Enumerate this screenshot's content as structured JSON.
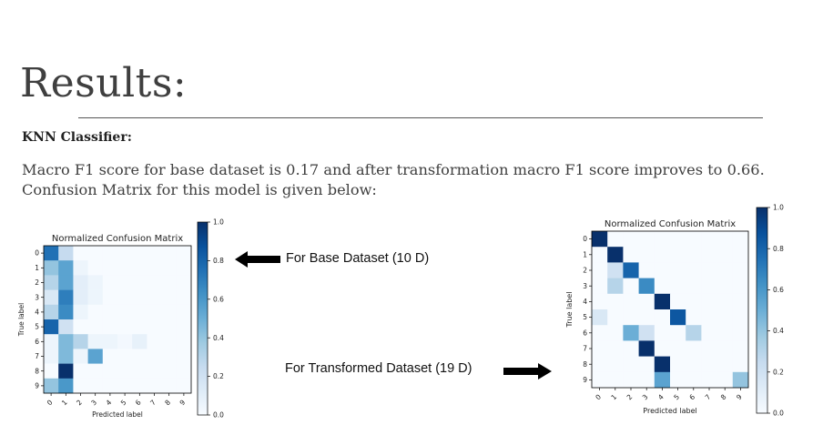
{
  "slide": {
    "title": "Results:",
    "subheading": "KNN Classifier:",
    "body_line1": "Macro F1 score for base dataset is 0.17 and after transformation macro F1 score improves to 0.66.",
    "body_line2": "Confusion Matrix for this model is given below:",
    "annotation_base": "For Base Dataset (10 D)",
    "annotation_transformed": "For Transformed Dataset (19 D)"
  },
  "colors": {
    "colormap_low": "#f7fbff",
    "colormap_high": "#08306b",
    "arrow": "#000000"
  },
  "chart_data": [
    {
      "type": "heatmap",
      "title": "Normalized Confusion Matrix",
      "xlabel": "Predicted label",
      "ylabel": "True label",
      "x": [
        "0",
        "1",
        "2",
        "3",
        "4",
        "5",
        "6",
        "7",
        "8",
        "9"
      ],
      "y": [
        "0",
        "1",
        "2",
        "3",
        "4",
        "5",
        "6",
        "7",
        "8",
        "9"
      ],
      "colorbar_ticks": [
        "0.0",
        "0.2",
        "0.4",
        "0.6",
        "0.8",
        "1.0"
      ],
      "zlim": [
        0,
        1
      ],
      "values": [
        [
          0.75,
          0.25,
          0.0,
          0.0,
          0.0,
          0.0,
          0.0,
          0.0,
          0.0,
          0.0
        ],
        [
          0.4,
          0.55,
          0.05,
          0.0,
          0.0,
          0.0,
          0.0,
          0.0,
          0.0,
          0.0
        ],
        [
          0.3,
          0.55,
          0.1,
          0.05,
          0.0,
          0.0,
          0.0,
          0.0,
          0.0,
          0.0
        ],
        [
          0.15,
          0.7,
          0.1,
          0.05,
          0.0,
          0.0,
          0.0,
          0.0,
          0.0,
          0.0
        ],
        [
          0.3,
          0.65,
          0.05,
          0.0,
          0.0,
          0.0,
          0.0,
          0.0,
          0.0,
          0.0
        ],
        [
          0.8,
          0.2,
          0.0,
          0.0,
          0.0,
          0.0,
          0.0,
          0.0,
          0.0,
          0.0
        ],
        [
          0.05,
          0.45,
          0.3,
          0.05,
          0.05,
          0.02,
          0.08,
          0.0,
          0.0,
          0.0
        ],
        [
          0.05,
          0.45,
          0.05,
          0.55,
          0.0,
          0.0,
          0.0,
          0.0,
          0.0,
          0.0
        ],
        [
          0.0,
          1.0,
          0.0,
          0.0,
          0.0,
          0.0,
          0.0,
          0.0,
          0.0,
          0.0
        ],
        [
          0.4,
          0.6,
          0.0,
          0.0,
          0.0,
          0.0,
          0.0,
          0.0,
          0.0,
          0.0
        ]
      ]
    },
    {
      "type": "heatmap",
      "title": "Normalized Confusion Matrix",
      "xlabel": "Predicted label",
      "ylabel": "True label",
      "x": [
        "0",
        "1",
        "2",
        "3",
        "4",
        "5",
        "6",
        "7",
        "8",
        "9"
      ],
      "y": [
        "0",
        "1",
        "2",
        "3",
        "4",
        "5",
        "6",
        "7",
        "8",
        "9"
      ],
      "colorbar_ticks": [
        "0.0",
        "0.2",
        "0.4",
        "0.6",
        "0.8",
        "1.0"
      ],
      "zlim": [
        0,
        1
      ],
      "values": [
        [
          1.0,
          0,
          0,
          0,
          0,
          0,
          0,
          0,
          0,
          0
        ],
        [
          0,
          1.0,
          0,
          0,
          0,
          0,
          0,
          0,
          0,
          0
        ],
        [
          0,
          0.2,
          0.8,
          0,
          0,
          0,
          0,
          0,
          0,
          0
        ],
        [
          0,
          0.3,
          0,
          0.65,
          0,
          0,
          0,
          0,
          0,
          0
        ],
        [
          0,
          0,
          0,
          0,
          1.0,
          0,
          0,
          0,
          0,
          0
        ],
        [
          0.15,
          0,
          0,
          0,
          0,
          0.85,
          0,
          0,
          0,
          0
        ],
        [
          0,
          0,
          0.5,
          0.2,
          0,
          0,
          0.3,
          0,
          0,
          0
        ],
        [
          0,
          0,
          0,
          1.0,
          0,
          0,
          0,
          0,
          0,
          0
        ],
        [
          0,
          0,
          0,
          0,
          1.0,
          0,
          0,
          0,
          0,
          0
        ],
        [
          0,
          0,
          0,
          0,
          0.55,
          0,
          0,
          0,
          0,
          0.4
        ]
      ]
    }
  ]
}
